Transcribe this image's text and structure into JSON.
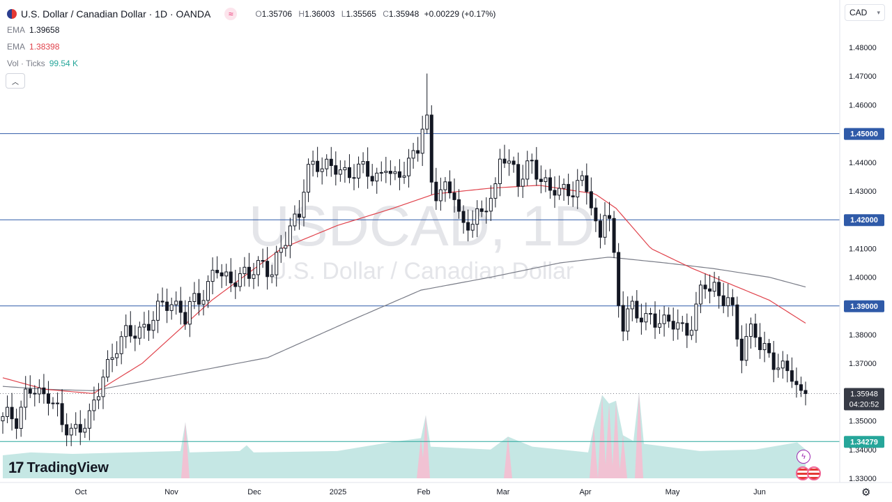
{
  "header": {
    "title": "U.S. Dollar / Canadian Dollar · 1D · OANDA",
    "ohlc": [
      {
        "key": "O",
        "value": "1.35706"
      },
      {
        "key": "H",
        "value": "1.36003"
      },
      {
        "key": "L",
        "value": "1.35565"
      },
      {
        "key": "C",
        "value": "1.35948"
      }
    ],
    "change": "+0.00229 (+0.17%)",
    "currency": "CAD"
  },
  "legend": {
    "ema1_label": "EMA",
    "ema1_value": "1.39658",
    "ema1_color": "#787b86",
    "ema2_label": "EMA",
    "ema2_value": "1.38398",
    "ema2_color": "#e0424b",
    "vol_label": "Vol · Ticks",
    "vol_value": "99.54 K",
    "vol_color": "#26a69a"
  },
  "watermark": {
    "symbol": "USDCAD, 1D",
    "name": "U.S. Dollar / Canadian Dollar"
  },
  "countdown": "04:20:52",
  "branding": "TradingView",
  "colors": {
    "up": "#131722",
    "down": "#131722",
    "vol_up": "#b2dfdb",
    "vol_down": "#f8bbd0",
    "hline": "#2f5aa8",
    "support": "#26a69a"
  },
  "chart_data": {
    "type": "candlestick",
    "y_axis": {
      "ticks": [
        "1.48000",
        "1.47000",
        "1.46000",
        "1.45000",
        "1.44000",
        "1.43000",
        "1.42000",
        "1.41000",
        "1.40000",
        "1.39000",
        "1.38000",
        "1.37000",
        "1.36000",
        "1.35000",
        "1.34000",
        "1.33000"
      ],
      "range": [
        1.328,
        1.4825
      ]
    },
    "x_axis": {
      "labels": [
        "Oct",
        "Nov",
        "Dec",
        "2025",
        "Feb",
        "Mar",
        "Apr",
        "May",
        "Jun"
      ]
    },
    "horizontal_lines": [
      {
        "value": 1.45,
        "label": "1.45000"
      },
      {
        "value": 1.42,
        "label": "1.42000"
      },
      {
        "value": 1.39,
        "label": "1.39000"
      },
      {
        "value": 1.34279,
        "label": "1.34279"
      }
    ],
    "last_price": {
      "value": 1.35948,
      "label": "1.35948"
    },
    "close_path": [
      [
        0,
        1.35
      ],
      [
        10,
        1.352
      ],
      [
        20,
        1.351
      ],
      [
        28,
        1.356
      ],
      [
        35,
        1.361
      ],
      [
        42,
        1.36
      ],
      [
        55,
        1.358
      ],
      [
        65,
        1.36
      ],
      [
        75,
        1.357
      ],
      [
        85,
        1.348
      ],
      [
        95,
        1.345
      ],
      [
        105,
        1.347
      ],
      [
        115,
        1.35
      ],
      [
        125,
        1.352
      ],
      [
        135,
        1.357
      ],
      [
        145,
        1.366
      ],
      [
        155,
        1.372
      ],
      [
        165,
        1.378
      ],
      [
        175,
        1.38
      ],
      [
        185,
        1.379
      ],
      [
        195,
        1.381
      ],
      [
        205,
        1.384
      ],
      [
        215,
        1.386
      ],
      [
        225,
        1.389
      ],
      [
        235,
        1.39
      ],
      [
        245,
        1.391
      ],
      [
        255,
        1.39
      ],
      [
        262,
        1.386
      ],
      [
        268,
        1.389
      ],
      [
        275,
        1.391
      ],
      [
        285,
        1.392
      ],
      [
        295,
        1.398
      ],
      [
        305,
        1.406
      ],
      [
        315,
        1.399
      ],
      [
        325,
        1.397
      ],
      [
        335,
        1.4
      ],
      [
        345,
        1.403
      ],
      [
        355,
        1.401
      ],
      [
        365,
        1.402
      ],
      [
        375,
        1.404
      ],
      [
        385,
        1.402
      ],
      [
        395,
        1.409
      ],
      [
        405,
        1.412
      ],
      [
        415,
        1.417
      ],
      [
        425,
        1.422
      ],
      [
        432,
        1.433
      ],
      [
        440,
        1.44
      ],
      [
        450,
        1.438
      ],
      [
        460,
        1.437
      ],
      [
        470,
        1.439
      ],
      [
        480,
        1.44
      ],
      [
        490,
        1.436
      ],
      [
        500,
        1.434
      ],
      [
        510,
        1.437
      ],
      [
        520,
        1.44
      ],
      [
        530,
        1.436
      ],
      [
        540,
        1.433
      ],
      [
        550,
        1.438
      ],
      [
        560,
        1.434
      ],
      [
        570,
        1.437
      ],
      [
        580,
        1.44
      ],
      [
        590,
        1.441
      ],
      [
        597,
        1.444
      ],
      [
        602,
        1.452
      ],
      [
        607,
        1.465
      ],
      [
        612,
        1.436
      ],
      [
        620,
        1.43
      ],
      [
        630,
        1.431
      ],
      [
        640,
        1.428
      ],
      [
        650,
        1.429
      ],
      [
        658,
        1.418
      ],
      [
        668,
        1.419
      ],
      [
        678,
        1.421
      ],
      [
        688,
        1.42
      ],
      [
        698,
        1.428
      ],
      [
        708,
        1.432
      ],
      [
        715,
        1.445
      ],
      [
        722,
        1.441
      ],
      [
        730,
        1.437
      ],
      [
        740,
        1.432
      ],
      [
        750,
        1.44
      ],
      [
        758,
        1.441
      ],
      [
        766,
        1.436
      ],
      [
        775,
        1.432
      ],
      [
        785,
        1.429
      ],
      [
        795,
        1.433
      ],
      [
        805,
        1.431
      ],
      [
        815,
        1.428
      ],
      [
        825,
        1.431
      ],
      [
        835,
        1.434
      ],
      [
        842,
        1.43
      ],
      [
        850,
        1.42
      ],
      [
        856,
        1.41
      ],
      [
        862,
        1.422
      ],
      [
        868,
        1.424
      ],
      [
        875,
        1.411
      ],
      [
        882,
        1.393
      ],
      [
        890,
        1.385
      ],
      [
        900,
        1.391
      ],
      [
        910,
        1.386
      ],
      [
        920,
        1.384
      ],
      [
        930,
        1.387
      ],
      [
        940,
        1.386
      ],
      [
        950,
        1.384
      ],
      [
        960,
        1.383
      ],
      [
        970,
        1.383
      ],
      [
        980,
        1.382
      ],
      [
        990,
        1.385
      ],
      [
        998,
        1.391
      ],
      [
        1005,
        1.398
      ],
      [
        1012,
        1.395
      ],
      [
        1020,
        1.397
      ],
      [
        1030,
        1.394
      ],
      [
        1040,
        1.393
      ],
      [
        1048,
        1.386
      ],
      [
        1056,
        1.375
      ],
      [
        1062,
        1.372
      ],
      [
        1070,
        1.383
      ],
      [
        1078,
        1.384
      ],
      [
        1086,
        1.376
      ],
      [
        1094,
        1.373
      ],
      [
        1102,
        1.371
      ],
      [
        1110,
        1.369
      ],
      [
        1118,
        1.37
      ],
      [
        1126,
        1.369
      ],
      [
        1134,
        1.365
      ],
      [
        1140,
        1.359
      ],
      [
        1146,
        1.357
      ],
      [
        1152,
        1.3595
      ]
    ],
    "ema_fast": [
      [
        0,
        1.365
      ],
      [
        60,
        1.361
      ],
      [
        130,
        1.3595
      ],
      [
        200,
        1.37
      ],
      [
        300,
        1.392
      ],
      [
        400,
        1.41
      ],
      [
        480,
        1.418
      ],
      [
        560,
        1.424
      ],
      [
        620,
        1.429
      ],
      [
        700,
        1.431
      ],
      [
        770,
        1.432
      ],
      [
        850,
        1.429
      ],
      [
        880,
        1.424
      ],
      [
        930,
        1.41
      ],
      [
        990,
        1.403
      ],
      [
        1040,
        1.398
      ],
      [
        1100,
        1.392
      ],
      [
        1152,
        1.384
      ]
    ],
    "ema_slow": [
      [
        0,
        1.362
      ],
      [
        60,
        1.361
      ],
      [
        130,
        1.3605
      ],
      [
        250,
        1.366
      ],
      [
        380,
        1.372
      ],
      [
        500,
        1.385
      ],
      [
        600,
        1.3955
      ],
      [
        700,
        1.4
      ],
      [
        800,
        1.405
      ],
      [
        870,
        1.407
      ],
      [
        950,
        1.405
      ],
      [
        1020,
        1.403
      ],
      [
        1100,
        1.4
      ],
      [
        1152,
        1.3966
      ]
    ],
    "volume_path": [
      [
        0,
        1.338
      ],
      [
        40,
        1.339
      ],
      [
        100,
        1.3385
      ],
      [
        180,
        1.339
      ],
      [
        255,
        1.3395
      ],
      [
        262,
        1.3495
      ],
      [
        268,
        1.339
      ],
      [
        340,
        1.3395
      ],
      [
        350,
        1.3415
      ],
      [
        360,
        1.339
      ],
      [
        480,
        1.3395
      ],
      [
        555,
        1.3425
      ],
      [
        600,
        1.344
      ],
      [
        607,
        1.352
      ],
      [
        614,
        1.341
      ],
      [
        700,
        1.34
      ],
      [
        725,
        1.3445
      ],
      [
        760,
        1.341
      ],
      [
        840,
        1.339
      ],
      [
        848,
        1.348
      ],
      [
        860,
        1.359
      ],
      [
        870,
        1.356
      ],
      [
        880,
        1.357
      ],
      [
        890,
        1.345
      ],
      [
        905,
        1.343
      ],
      [
        913,
        1.36
      ],
      [
        920,
        1.342
      ],
      [
        1000,
        1.3395
      ],
      [
        1080,
        1.34
      ],
      [
        1140,
        1.3425
      ],
      [
        1152,
        1.34
      ]
    ]
  }
}
